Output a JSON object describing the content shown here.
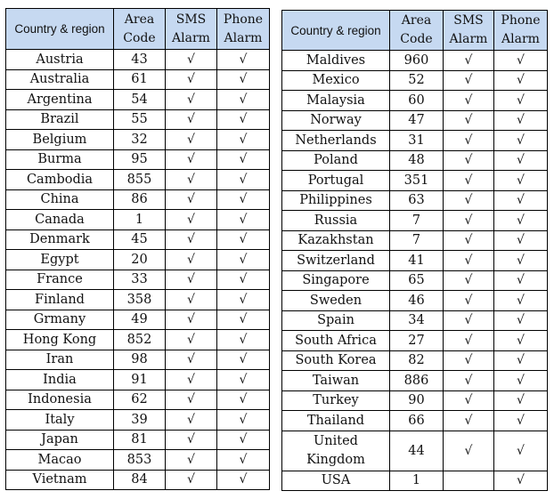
{
  "headers": {
    "country": "Country & region",
    "area_line1": "Area",
    "area_line2": "Code",
    "sms_line1": "SMS",
    "sms_line2": "Alarm",
    "phone_line1": "Phone",
    "phone_line2": "Alarm"
  },
  "check_mark": "√",
  "left_rows": [
    {
      "country": "Austria",
      "code": "43",
      "sms": true,
      "phone": true
    },
    {
      "country": "Australia",
      "code": "61",
      "sms": true,
      "phone": true
    },
    {
      "country": "Argentina",
      "code": "54",
      "sms": true,
      "phone": true
    },
    {
      "country": "Brazil",
      "code": "55",
      "sms": true,
      "phone": true
    },
    {
      "country": "Belgium",
      "code": "32",
      "sms": true,
      "phone": true
    },
    {
      "country": "Burma",
      "code": "95",
      "sms": true,
      "phone": true
    },
    {
      "country": "Cambodia",
      "code": "855",
      "sms": true,
      "phone": true
    },
    {
      "country": "China",
      "code": "86",
      "sms": true,
      "phone": true
    },
    {
      "country": "Canada",
      "code": "1",
      "sms": true,
      "phone": true
    },
    {
      "country": "Denmark",
      "code": "45",
      "sms": true,
      "phone": true
    },
    {
      "country": "Egypt",
      "code": "20",
      "sms": true,
      "phone": true
    },
    {
      "country": "France",
      "code": "33",
      "sms": true,
      "phone": true
    },
    {
      "country": "Finland",
      "code": "358",
      "sms": true,
      "phone": true
    },
    {
      "country": "Grmany",
      "code": "49",
      "sms": true,
      "phone": true
    },
    {
      "country": "Hong Kong",
      "code": "852",
      "sms": true,
      "phone": true
    },
    {
      "country": "Iran",
      "code": "98",
      "sms": true,
      "phone": true
    },
    {
      "country": "India",
      "code": "91",
      "sms": true,
      "phone": true
    },
    {
      "country": "Indonesia",
      "code": "62",
      "sms": true,
      "phone": true
    },
    {
      "country": "Italy",
      "code": "39",
      "sms": true,
      "phone": true
    },
    {
      "country": "Japan",
      "code": "81",
      "sms": true,
      "phone": true
    },
    {
      "country": "Macao",
      "code": "853",
      "sms": true,
      "phone": true
    },
    {
      "country": "Vietnam",
      "code": "84",
      "sms": true,
      "phone": true
    }
  ],
  "right_rows": [
    {
      "country": "Maldives",
      "code": "960",
      "sms": true,
      "phone": true
    },
    {
      "country": "Mexico",
      "code": "52",
      "sms": true,
      "phone": true
    },
    {
      "country": "Malaysia",
      "code": "60",
      "sms": true,
      "phone": true
    },
    {
      "country": "Norway",
      "code": "47",
      "sms": true,
      "phone": true
    },
    {
      "country": "Netherlands",
      "code": "31",
      "sms": true,
      "phone": true
    },
    {
      "country": "Poland",
      "code": "48",
      "sms": true,
      "phone": true
    },
    {
      "country": "Portugal",
      "code": "351",
      "sms": true,
      "phone": true
    },
    {
      "country": "Philippines",
      "code": "63",
      "sms": true,
      "phone": true
    },
    {
      "country": "Russia",
      "code": "7",
      "sms": true,
      "phone": true
    },
    {
      "country": "Kazakhstan",
      "code": "7",
      "sms": true,
      "phone": true
    },
    {
      "country": "Switzerland",
      "code": "41",
      "sms": true,
      "phone": true
    },
    {
      "country": "Singapore",
      "code": "65",
      "sms": true,
      "phone": true
    },
    {
      "country": "Sweden",
      "code": "46",
      "sms": true,
      "phone": true
    },
    {
      "country": "Spain",
      "code": "34",
      "sms": true,
      "phone": true
    },
    {
      "country": "South Africa",
      "code": "27",
      "sms": true,
      "phone": true
    },
    {
      "country": "South Korea",
      "code": "82",
      "sms": true,
      "phone": true
    },
    {
      "country": "Taiwan",
      "code": "886",
      "sms": true,
      "phone": true
    },
    {
      "country": "Turkey",
      "code": "90",
      "sms": true,
      "phone": true
    },
    {
      "country": "Thailand",
      "code": "66",
      "sms": true,
      "phone": true
    },
    {
      "country": "United Kingdom",
      "code": "44",
      "sms": true,
      "phone": true,
      "tall": true
    },
    {
      "country": "USA",
      "code": "1",
      "sms": false,
      "phone": true
    }
  ]
}
